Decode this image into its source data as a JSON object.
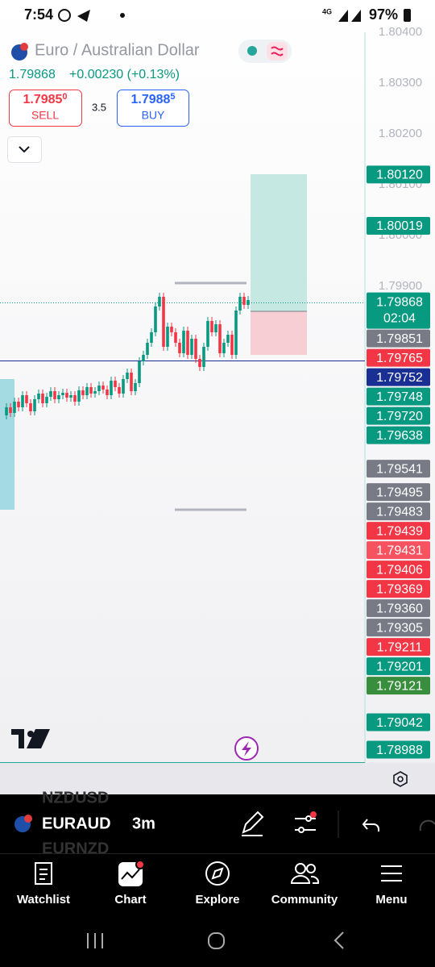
{
  "status_bar": {
    "time": "7:54",
    "network": "4G",
    "battery": "97%"
  },
  "header": {
    "title": "Euro / Australian Dollar",
    "price": "1.79868",
    "change": "+0.00230 (+0.13%)",
    "sell": {
      "price_main": "1.7985",
      "price_pip": "0",
      "label": "SELL"
    },
    "spread": "3.5",
    "buy": {
      "price_main": "1.7988",
      "price_pip": "5",
      "label": "BUY"
    }
  },
  "price_axis": {
    "scale_labels": [
      "1.80400",
      "1.80300",
      "1.80200",
      "1.80100",
      "1.80000",
      "1.79900"
    ],
    "current": {
      "price": "1.79868",
      "countdown": "02:04",
      "color": "#089981"
    },
    "badges": [
      {
        "text": "1.80120",
        "color": "#089981"
      },
      {
        "text": "1.80019",
        "color": "#089981"
      },
      {
        "text": "1.79851",
        "color": "#787b86"
      },
      {
        "text": "1.79765",
        "color": "#f23645"
      },
      {
        "text": "1.79752",
        "color": "#1a2f94"
      },
      {
        "text": "1.79748",
        "color": "#089981"
      },
      {
        "text": "1.79720",
        "color": "#089981"
      },
      {
        "text": "1.79638",
        "color": "#089981"
      },
      {
        "text": "1.79541",
        "color": "#787b86"
      },
      {
        "text": "1.79495",
        "color": "#787b86"
      },
      {
        "text": "1.79483",
        "color": "#787b86"
      },
      {
        "text": "1.79439",
        "color": "#f23645"
      },
      {
        "text": "1.79431",
        "color": "#f7525f"
      },
      {
        "text": "1.79406",
        "color": "#f23645"
      },
      {
        "text": "1.79369",
        "color": "#f23645"
      },
      {
        "text": "1.79360",
        "color": "#787b86"
      },
      {
        "text": "1.79305",
        "color": "#787b86"
      },
      {
        "text": "1.79211",
        "color": "#f23645"
      },
      {
        "text": "1.79201",
        "color": "#089981"
      },
      {
        "text": "1.79121",
        "color": "#388e3c"
      },
      {
        "text": "1.79042",
        "color": "#089981"
      },
      {
        "text": "1.78988",
        "color": "#089981"
      }
    ]
  },
  "toolbar": {
    "symbol": "EURAUD",
    "interval": "3m",
    "symbol_above": "NZDUSD",
    "symbol_below": "EURNZD"
  },
  "nav": {
    "items": [
      "Watchlist",
      "Chart",
      "Explore",
      "Community",
      "Menu"
    ]
  }
}
